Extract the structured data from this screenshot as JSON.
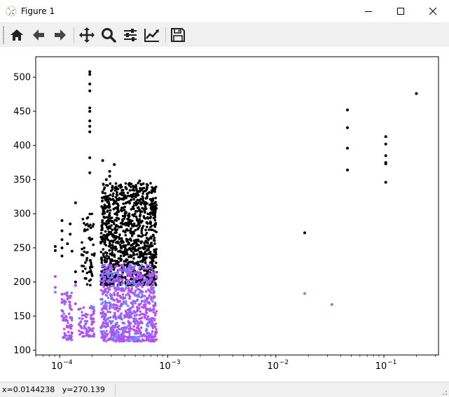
{
  "window": {
    "title": "Figure 1",
    "controls": [
      "minimize",
      "maximize",
      "close"
    ]
  },
  "toolbar": {
    "tools": [
      {
        "name": "home",
        "icon": "home-icon"
      },
      {
        "name": "back",
        "icon": "arrow-left-icon"
      },
      {
        "name": "forward",
        "icon": "arrow-right-icon"
      },
      {
        "name": "pan",
        "icon": "move-icon"
      },
      {
        "name": "zoom",
        "icon": "magnifier-icon"
      },
      {
        "name": "configure-subplots",
        "icon": "sliders-icon"
      },
      {
        "name": "edit-axis",
        "icon": "line-chart-icon"
      },
      {
        "name": "save",
        "icon": "floppy-disk-icon"
      }
    ]
  },
  "status": {
    "coords": "x=0.0144238   y=270.139"
  },
  "chart_data": {
    "type": "scatter",
    "xscale": "log",
    "xlim": [
      6e-05,
      0.32
    ],
    "ylim": [
      93,
      530
    ],
    "xticks": [
      {
        "value": 0.0001,
        "label": "10",
        "exp": "−4"
      },
      {
        "value": 0.001,
        "label": "10",
        "exp": "−3"
      },
      {
        "value": 0.01,
        "label": "10",
        "exp": "−2"
      },
      {
        "value": 0.1,
        "label": "10",
        "exp": "−1"
      }
    ],
    "yticks": [
      100,
      150,
      200,
      250,
      300,
      350,
      400,
      450,
      500
    ],
    "grid": false,
    "colors": {
      "upper": "#000000",
      "lower_blue": "#6b8cff",
      "lower_violet": "#a855f7",
      "lower_magenta": "#cc44ee"
    },
    "series": [
      {
        "color": "#000000",
        "points": [
          [
            0.00019,
            508
          ],
          [
            0.00019,
            504
          ],
          [
            0.00019,
            490
          ],
          [
            0.00019,
            480
          ],
          [
            0.00019,
            455
          ],
          [
            0.00019,
            450
          ],
          [
            0.00019,
            436
          ],
          [
            0.00019,
            428
          ],
          [
            0.00019,
            420
          ],
          [
            0.00019,
            382
          ],
          [
            0.00019,
            360
          ],
          [
            0.00025,
            378
          ],
          [
            0.00032,
            372
          ],
          [
            0.00029,
            362
          ],
          [
            0.00029,
            355
          ],
          [
            0.00027,
            350
          ],
          [
            0.00048,
            340
          ],
          [
            0.00055,
            348
          ],
          [
            0.00014,
            316
          ],
          [
            9.1e-05,
            252
          ],
          [
            9.1e-05,
            246
          ],
          [
            0.000105,
            290
          ],
          [
            0.000105,
            275
          ],
          [
            0.000105,
            262
          ],
          [
            0.000105,
            250
          ],
          [
            0.000105,
            238
          ],
          [
            0.000125,
            285
          ],
          [
            0.000125,
            270
          ],
          [
            0.000118,
            256
          ],
          [
            0.00013,
            245
          ],
          [
            0.00014,
            215
          ],
          [
            0.00014,
            200
          ],
          [
            0.00016,
            240
          ],
          [
            0.000175,
            205
          ],
          [
            0.0185,
            272
          ],
          [
            0.046,
            452
          ],
          [
            0.046,
            426
          ],
          [
            0.046,
            396
          ],
          [
            0.046,
            364
          ],
          [
            0.104,
            413
          ],
          [
            0.104,
            402
          ],
          [
            0.104,
            385
          ],
          [
            0.104,
            375
          ],
          [
            0.104,
            373
          ],
          [
            0.104,
            346
          ],
          [
            0.2,
            476
          ]
        ],
        "clusters": [
          {
            "xmin": 0.00016,
            "xmax": 0.00021,
            "ymin": 195,
            "ymax": 300,
            "n": 60
          },
          {
            "xmin": 0.00024,
            "xmax": 0.00079,
            "ymin": 195,
            "ymax": 345,
            "n": 1100
          }
        ]
      },
      {
        "color": "#8a63f5",
        "points": [
          [
            9.1e-05,
            208
          ],
          [
            9.1e-05,
            192
          ],
          [
            9.1e-05,
            185
          ],
          [
            0.000105,
            182
          ],
          [
            0.000105,
            170
          ],
          [
            0.000105,
            158
          ],
          [
            0.000105,
            150
          ],
          [
            0.000125,
            148
          ],
          [
            0.000125,
            135
          ],
          [
            0.00013,
            125
          ],
          [
            0.00014,
            195
          ],
          [
            0.00014,
            168
          ],
          [
            0.00015,
            160
          ],
          [
            0.0185,
            183
          ],
          [
            0.033,
            167
          ]
        ],
        "clusters": [
          {
            "xmin": 0.000105,
            "xmax": 0.00013,
            "ymin": 115,
            "ymax": 185,
            "n": 70
          },
          {
            "xmin": 0.00015,
            "xmax": 0.00021,
            "ymin": 120,
            "ymax": 165,
            "n": 80
          },
          {
            "xmin": 0.00024,
            "xmax": 0.00079,
            "ymin": 113,
            "ymax": 225,
            "n": 850
          }
        ]
      }
    ]
  }
}
